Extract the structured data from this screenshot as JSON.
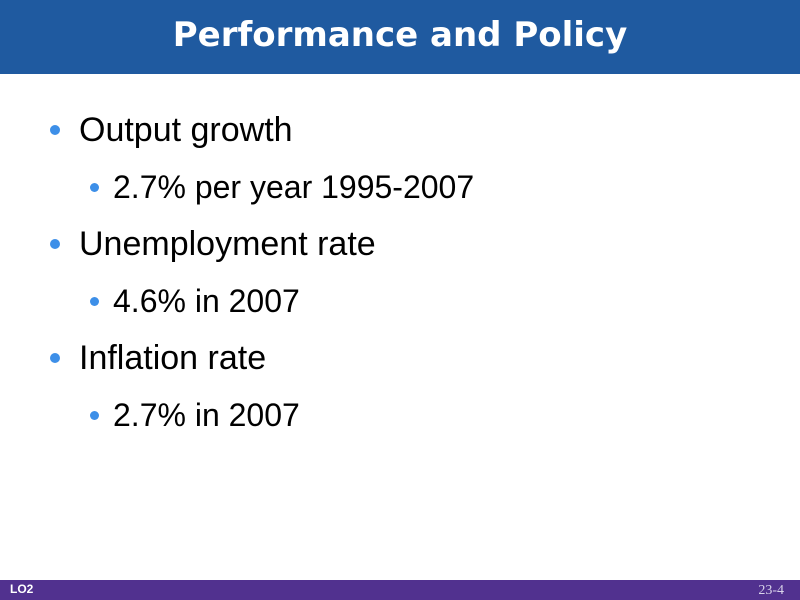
{
  "slide": {
    "title": "Performance and Policy",
    "bullets": [
      {
        "label": "Output growth",
        "sub": "2.7% per year 1995-2007"
      },
      {
        "label": "Unemployment rate",
        "sub": "4.6% in 2007"
      },
      {
        "label": "Inflation rate",
        "sub": "2.7% in 2007"
      }
    ]
  },
  "footer": {
    "learning_objective": "LO2",
    "slide_number": "23-4"
  },
  "colors": {
    "title_bar": "#1f5aa0",
    "bullet_dot": "#3d8fe8",
    "footer_bar": "#51318f"
  }
}
